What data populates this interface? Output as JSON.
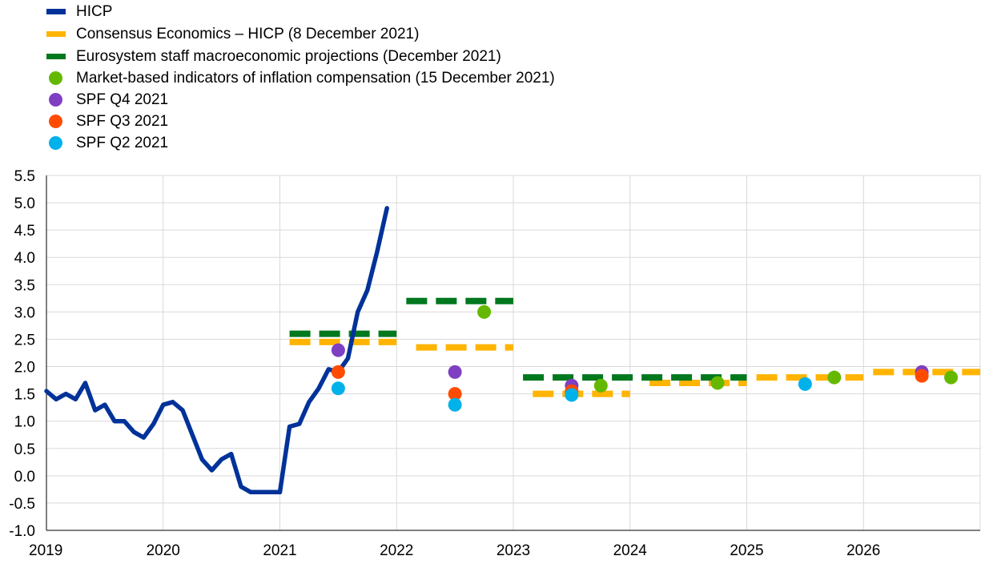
{
  "legend": {
    "items": [
      {
        "label": "HICP",
        "symbol": "line",
        "color": "#003299"
      },
      {
        "label": "Consensus Economics – HICP (8 December 2021)",
        "symbol": "dash",
        "color": "#ffb400"
      },
      {
        "label": "Eurosystem staff macroeconomic projections (December 2021)",
        "symbol": "dash",
        "color": "#00781e"
      },
      {
        "label": "Market-based indicators of inflation compensation (15 December 2021)",
        "symbol": "dot",
        "color": "#65b800"
      },
      {
        "label": "SPF Q4 2021",
        "symbol": "dot",
        "color": "#7f3fc3"
      },
      {
        "label": "SPF Q3 2021",
        "symbol": "dot",
        "color": "#ff4b00"
      },
      {
        "label": "SPF Q2 2021",
        "symbol": "dot",
        "color": "#00b1ea"
      }
    ]
  },
  "chart_data": {
    "type": "line",
    "xlim": [
      2019.0,
      2027.0
    ],
    "ylim": [
      -1.0,
      5.5
    ],
    "x_ticks": [
      2019,
      2020,
      2021,
      2022,
      2023,
      2024,
      2025,
      2026
    ],
    "x_tick_labels": [
      "2019",
      "2020",
      "2021",
      "2022",
      "2023",
      "2024",
      "2025",
      "2026"
    ],
    "y_ticks": [
      -1.0,
      -0.5,
      0.0,
      0.5,
      1.0,
      1.5,
      2.0,
      2.5,
      3.0,
      3.5,
      4.0,
      4.5,
      5.0,
      5.5
    ],
    "y_tick_labels": [
      "-1.0",
      "-0.5",
      "0.0",
      "0.5",
      "1.0",
      "1.5",
      "2.0",
      "2.5",
      "3.0",
      "3.5",
      "4.0",
      "4.5",
      "5.0",
      "5.5"
    ],
    "grid": true,
    "legend_position": "top-left",
    "hicp": {
      "name": "HICP",
      "color": "#003299",
      "x": [
        2019.0,
        2019.083,
        2019.167,
        2019.25,
        2019.333,
        2019.417,
        2019.5,
        2019.583,
        2019.667,
        2019.75,
        2019.833,
        2019.917,
        2020.0,
        2020.083,
        2020.167,
        2020.25,
        2020.333,
        2020.417,
        2020.5,
        2020.583,
        2020.667,
        2020.75,
        2020.833,
        2020.917,
        2021.0,
        2021.083,
        2021.167,
        2021.25,
        2021.333,
        2021.417,
        2021.5,
        2021.583,
        2021.667,
        2021.75,
        2021.833,
        2021.917
      ],
      "y": [
        1.55,
        1.4,
        1.5,
        1.4,
        1.7,
        1.2,
        1.3,
        1.0,
        1.0,
        0.8,
        0.7,
        0.95,
        1.3,
        1.35,
        1.2,
        0.75,
        0.3,
        0.1,
        0.3,
        0.4,
        -0.2,
        -0.3,
        -0.3,
        -0.3,
        -0.3,
        0.9,
        0.95,
        1.35,
        1.6,
        1.95,
        1.9,
        2.15,
        3.0,
        3.4,
        4.1,
        4.9
      ]
    },
    "dashed_series": [
      {
        "name": "Consensus Economics – HICP (8 December 2021)",
        "color": "#ffb400",
        "segments": [
          {
            "x": [
              2021.083,
              2022.0
            ],
            "y": 2.45
          },
          {
            "x": [
              2022.167,
              2023.0
            ],
            "y": 2.35
          },
          {
            "x": [
              2023.167,
              2024.0
            ],
            "y": 1.5
          },
          {
            "x": [
              2024.167,
              2025.0
            ],
            "y": 1.7
          },
          {
            "x": [
              2025.083,
              2026.0
            ],
            "y": 1.8
          },
          {
            "x": [
              2026.083,
              2027.0
            ],
            "y": 1.9
          }
        ]
      },
      {
        "name": "Eurosystem staff macroeconomic projections (December 2021)",
        "color": "#00781e",
        "segments": [
          {
            "x": [
              2021.083,
              2022.0
            ],
            "y": 2.6
          },
          {
            "x": [
              2022.083,
              2023.0
            ],
            "y": 3.2
          },
          {
            "x": [
              2023.083,
              2025.0
            ],
            "y": 1.8
          }
        ]
      }
    ],
    "point_series": [
      {
        "name": "Market-based indicators of inflation compensation (15 December 2021)",
        "color": "#65b800",
        "x": [
          2022.75,
          2023.75,
          2024.75,
          2025.75,
          2026.75
        ],
        "y": [
          3.0,
          1.65,
          1.7,
          1.8,
          1.8
        ]
      },
      {
        "name": "SPF Q4 2021",
        "color": "#7f3fc3",
        "x": [
          2021.5,
          2022.5,
          2023.5,
          2026.5
        ],
        "y": [
          2.3,
          1.9,
          1.65,
          1.9
        ]
      },
      {
        "name": "SPF Q3 2021",
        "color": "#ff4b00",
        "x": [
          2021.5,
          2022.5,
          2023.5,
          2026.5
        ],
        "y": [
          1.9,
          1.5,
          1.55,
          1.83
        ]
      },
      {
        "name": "SPF Q2 2021",
        "color": "#00b1ea",
        "x": [
          2021.5,
          2022.5,
          2023.5,
          2025.5
        ],
        "y": [
          1.6,
          1.3,
          1.48,
          1.68
        ]
      }
    ]
  }
}
